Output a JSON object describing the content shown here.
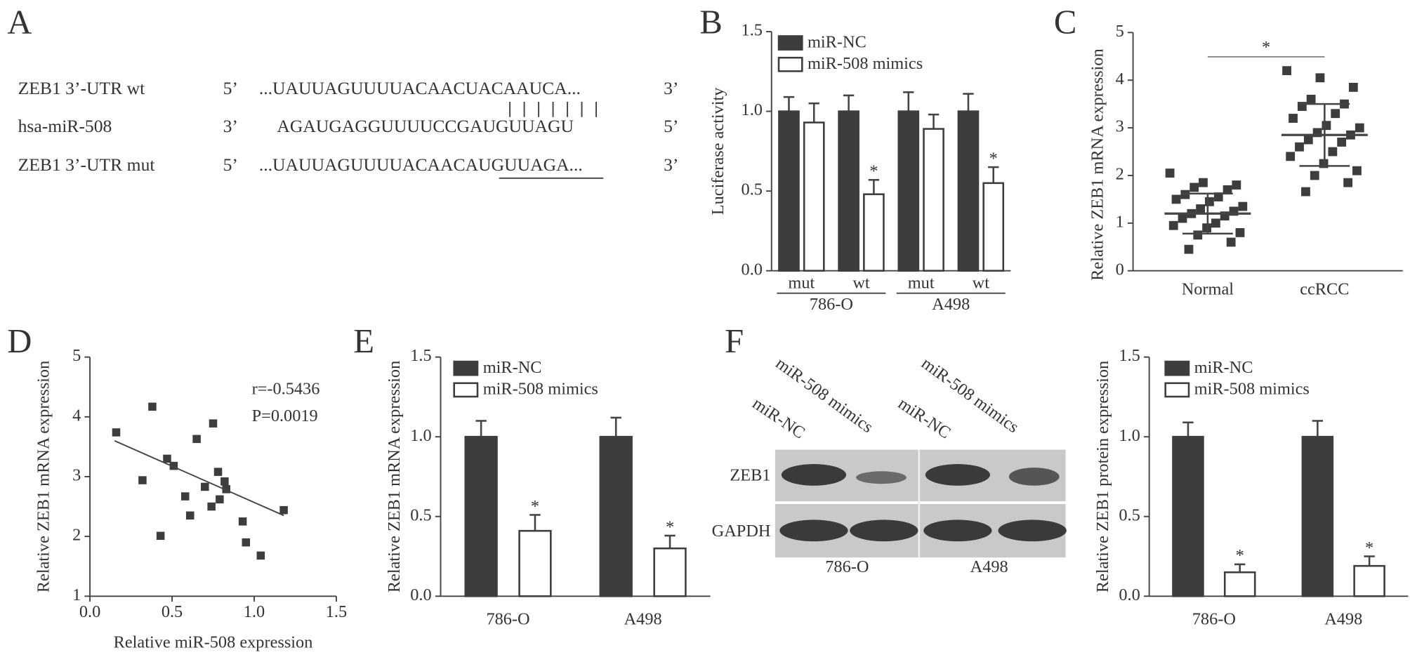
{
  "panel_labels": [
    "A",
    "B",
    "C",
    "D",
    "E",
    "F"
  ],
  "sequence": {
    "rows": [
      {
        "name": "ZEB1 3’-UTR wt",
        "end5": "5’",
        "seq": "...UAUUAGUUUUACAACUACAAUCA...",
        "end3": "3’"
      },
      {
        "name": "hsa-miR-508",
        "end5": "3’",
        "seq": "AGAUGAGGUUUUCCGAUGUUAGU",
        "end3": "5’"
      },
      {
        "name": "ZEB1 3’-UTR mut",
        "end5": "5’",
        "seq": "...UAUUAGUUUUACAACAUGUUAGA...",
        "end3": "3’"
      }
    ]
  },
  "blot": {
    "lanes": [
      "miR-NC",
      "miR-508 mimics",
      "miR-NC",
      "miR-508 mimics"
    ],
    "rows": [
      "ZEB1",
      "GAPDH"
    ],
    "groups": [
      "786-O",
      "A498"
    ]
  },
  "chart_data": [
    {
      "type": "bar",
      "y_label": "Luciferase activity",
      "categories": [
        "mut",
        "wt",
        "mut",
        "wt"
      ],
      "category_groups": [
        "786-O",
        "A498"
      ],
      "series": [
        {
          "name": "miR-NC",
          "color": "#3d3d3d",
          "values": [
            1,
            1,
            1,
            1
          ],
          "errors": [
            0.09,
            0.1,
            0.12,
            0.11
          ]
        },
        {
          "name": "miR-508 mimics",
          "color": "#ffffff",
          "values": [
            0.93,
            0.48,
            0.89,
            0.55
          ],
          "errors": [
            0.12,
            0.09,
            0.09,
            0.1
          ],
          "significance": [
            null,
            "*",
            null,
            "*"
          ]
        }
      ],
      "ylim": [
        0,
        1.5
      ],
      "yticks": [
        {
          "value": 0,
          "label": "0.0"
        },
        0.5,
        {
          "value": 1,
          "label": "1.0"
        },
        1.5
      ]
    },
    {
      "type": "dotplot",
      "y_label": "Relative ZEB1 mRNA expression",
      "categories": [
        "Normal",
        "ccRCC"
      ],
      "values": [
        [
          2.05,
          1.85,
          1.8,
          1.75,
          1.7,
          1.6,
          1.55,
          1.5,
          1.45,
          1.35,
          1.3,
          1.25,
          1.2,
          1.15,
          1.1,
          1.0,
          0.95,
          0.9,
          0.8,
          0.75,
          0.6,
          0.45
        ],
        [
          4.2,
          4.05,
          3.85,
          3.6,
          3.5,
          3.45,
          3.3,
          3.2,
          3.05,
          3.0,
          2.9,
          2.85,
          2.75,
          2.7,
          2.6,
          2.5,
          2.4,
          2.25,
          2.1,
          2.0,
          1.85,
          1.66
        ]
      ],
      "means": [
        1.2,
        2.85
      ],
      "sds": [
        0.42,
        0.65
      ],
      "significance": "*",
      "color": "#3d3d3d",
      "ylim": [
        0,
        5
      ],
      "yticks": [
        0,
        1,
        2,
        3,
        4,
        5
      ]
    },
    {
      "type": "scatter",
      "x_label": "Relative miR-508 expression",
      "y_label": "Relative ZEB1 mRNA expression",
      "x": [
        0.16,
        0.38,
        0.32,
        0.47,
        0.51,
        0.43,
        0.58,
        0.61,
        0.65,
        0.7,
        0.74,
        0.75,
        0.78,
        0.79,
        0.82,
        0.83,
        0.93,
        0.95,
        1.04,
        1.18
      ],
      "y": [
        3.74,
        4.17,
        2.94,
        3.3,
        3.18,
        2.01,
        2.67,
        2.35,
        3.63,
        2.83,
        2.5,
        3.89,
        3.08,
        2.62,
        2.92,
        2.79,
        2.25,
        1.9,
        1.68,
        2.44
      ],
      "fit": {
        "x": [
          0.15,
          1.18
        ],
        "y": [
          3.6,
          2.35
        ]
      },
      "annotations": [
        "r=-0.5436",
        "P=0.0019"
      ],
      "color": "#3d3d3d",
      "xlim": [
        0,
        1.5
      ],
      "xticks": [
        {
          "value": 0,
          "label": "0.0"
        },
        0.5,
        {
          "value": 1,
          "label": "1.0"
        },
        1.5
      ],
      "ylim": [
        1,
        5
      ],
      "yticks": [
        1,
        2,
        3,
        4,
        5
      ]
    },
    {
      "type": "bar",
      "y_label": "Relative ZEB1 mRNA expression",
      "categories": [
        "786-O",
        "A498"
      ],
      "series": [
        {
          "name": "miR-NC",
          "color": "#3d3d3d",
          "values": [
            1,
            1
          ],
          "errors": [
            0.1,
            0.12
          ]
        },
        {
          "name": "miR-508 mimics",
          "color": "#ffffff",
          "values": [
            0.41,
            0.3
          ],
          "errors": [
            0.1,
            0.08
          ],
          "significance": [
            "*",
            "*"
          ]
        }
      ],
      "ylim": [
        0,
        1.5
      ],
      "yticks": [
        {
          "value": 0,
          "label": "0.0"
        },
        0.5,
        {
          "value": 1,
          "label": "1.0"
        },
        1.5
      ]
    },
    {
      "type": "bar",
      "y_label": "Relative ZEB1 protein expression",
      "categories": [
        "786-O",
        "A498"
      ],
      "series": [
        {
          "name": "miR-NC",
          "color": "#3d3d3d",
          "values": [
            1,
            1
          ],
          "errors": [
            0.09,
            0.1
          ]
        },
        {
          "name": "miR-508 mimics",
          "color": "#ffffff",
          "values": [
            0.15,
            0.19
          ],
          "errors": [
            0.05,
            0.06
          ],
          "significance": [
            "*",
            "*"
          ]
        }
      ],
      "ylim": [
        0,
        1.5
      ],
      "yticks": [
        {
          "value": 0,
          "label": "0.0"
        },
        0.5,
        {
          "value": 1,
          "label": "1.0"
        },
        1.5
      ]
    }
  ]
}
